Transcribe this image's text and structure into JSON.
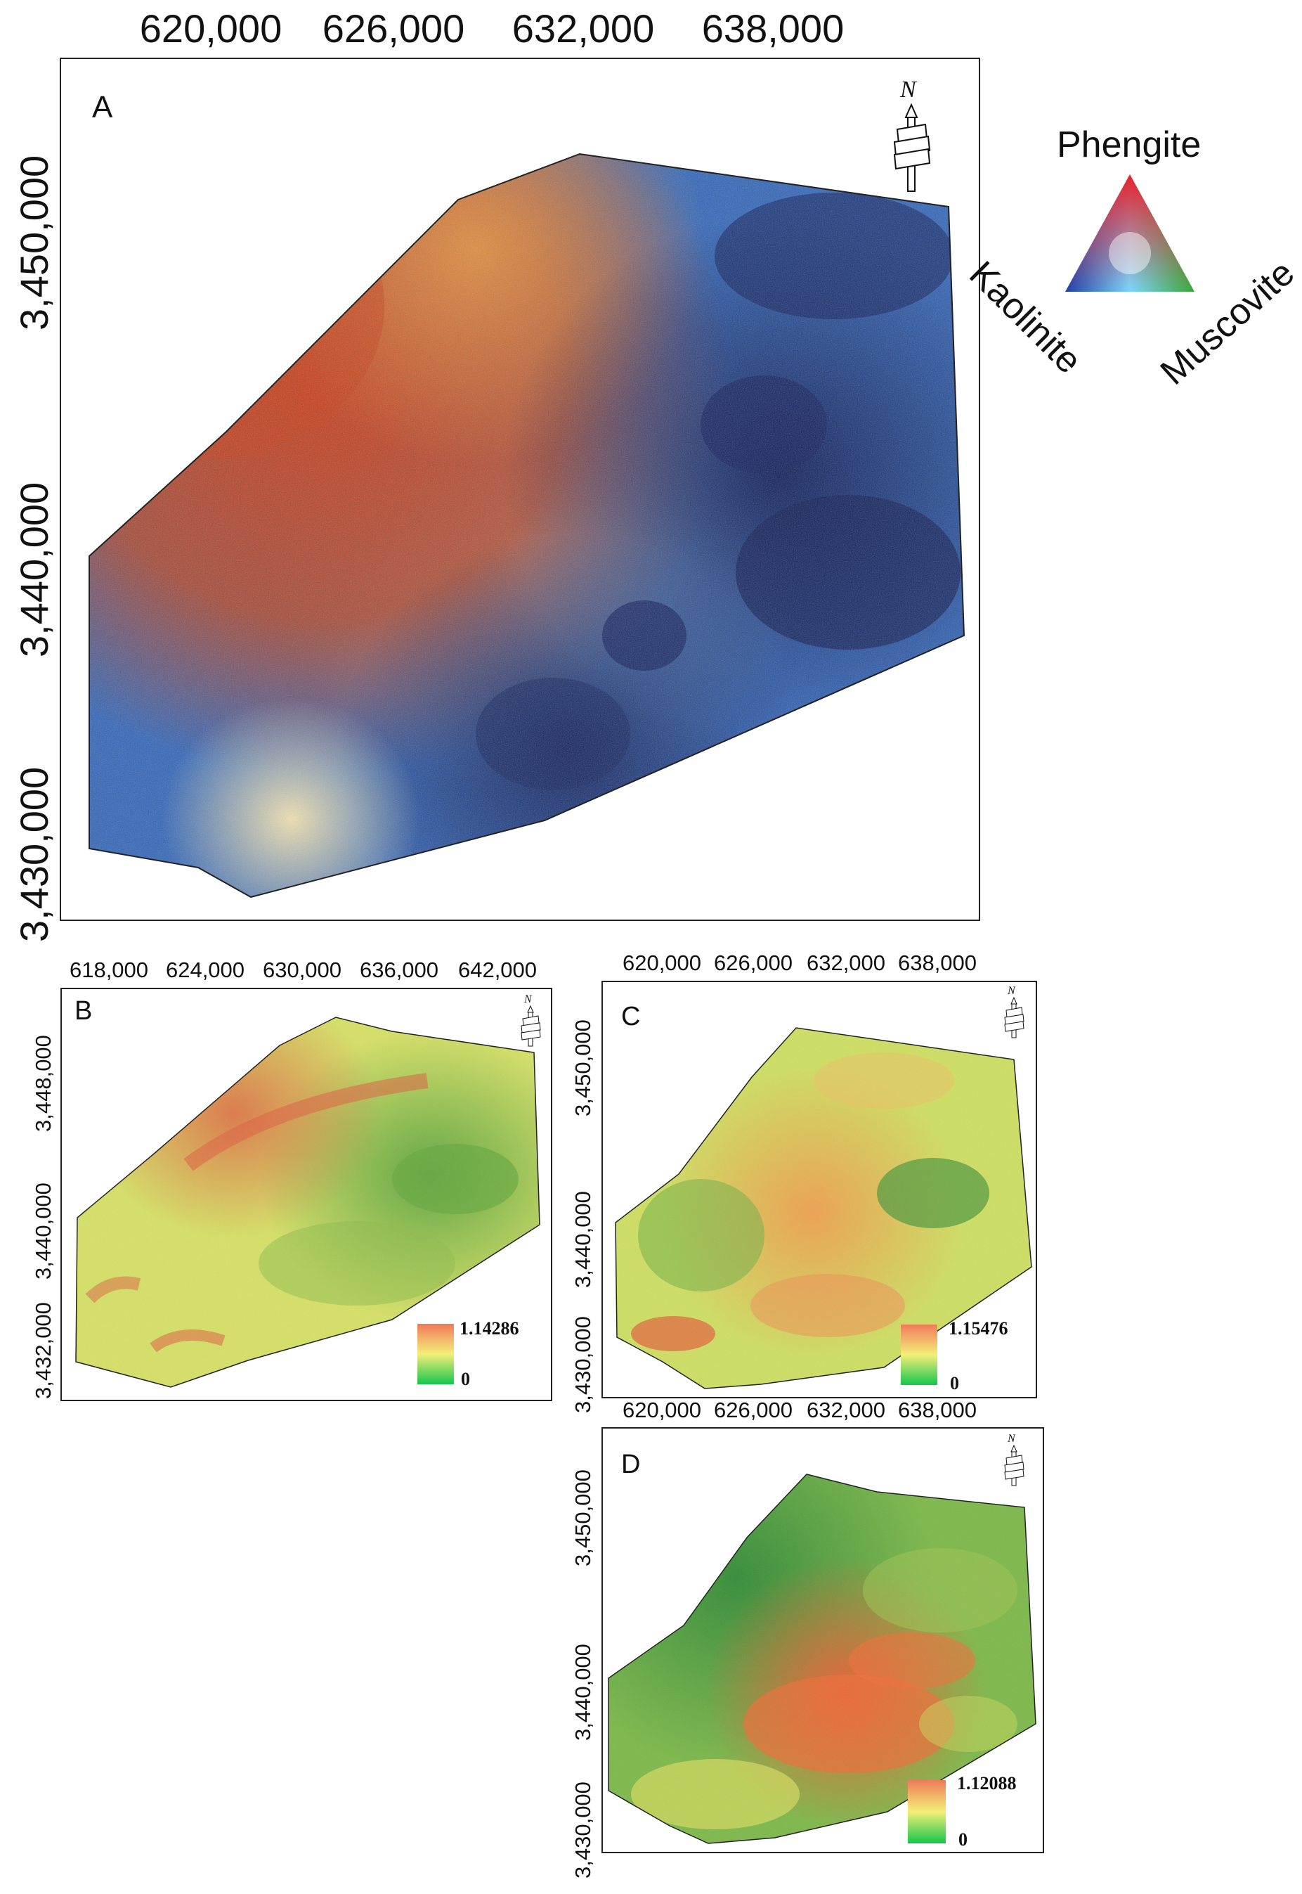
{
  "panel_a": {
    "label": "A",
    "x_ticks": [
      "620,000",
      "626,000",
      "632,000",
      "638,000"
    ],
    "y_ticks": [
      "3,450,000",
      "3,440,000",
      "3,430,000"
    ],
    "north": "N"
  },
  "ternary_legend": {
    "top": "Phengite",
    "left": "Kaolinite",
    "right": "Muscovite"
  },
  "panel_b": {
    "label": "B",
    "x_ticks": [
      "618,000",
      "624,000",
      "630,000",
      "636,000",
      "642,000"
    ],
    "y_ticks": [
      "3,448,000",
      "3,440,000",
      "3,432,000"
    ],
    "north": "N",
    "legend_max": "1.14286",
    "legend_min": "0"
  },
  "panel_c": {
    "label": "C",
    "x_ticks": [
      "620,000",
      "626,000",
      "632,000",
      "638,000"
    ],
    "y_ticks": [
      "3,450,000",
      "3,440,000",
      "3,430,000"
    ],
    "north": "N",
    "legend_max": "1.15476",
    "legend_min": "0"
  },
  "panel_d": {
    "label": "D",
    "x_ticks": [
      "620,000",
      "626,000",
      "632,000",
      "638,000"
    ],
    "y_ticks": [
      "3,450,000",
      "3,440,000",
      "3,430,000"
    ],
    "north": "N",
    "legend_max": "1.12088",
    "legend_min": "0"
  },
  "colors": {
    "phengite": "#e8202a",
    "kaolinite": "#1f3fa8",
    "muscovite": "#3aa935",
    "ramp_high": "#f08060",
    "ramp_mid": "#f2f07a",
    "ramp_low": "#1ec84a"
  }
}
